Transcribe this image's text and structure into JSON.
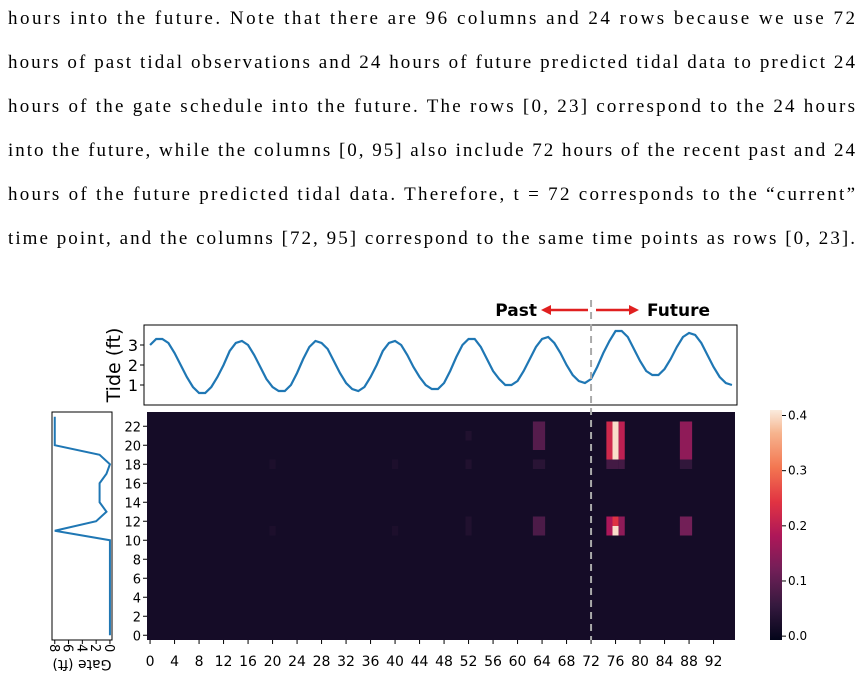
{
  "paragraph": [
    "hours into the future. Note that there are 96 columns and 24 rows because we use 72",
    "hours of past tidal observations and 24 hours of future predicted tidal data to predict 24",
    "hours of the gate schedule into the future. The rows [0, 23] correspond to the 24 hours",
    "into the future, while the columns [0, 95] also include 72 hours of the recent past and 24",
    "hours of the future predicted tidal data. Therefore, t = 72 corresponds to the “current”",
    "time point, and the columns [72, 95] correspond to the same time points as rows [0, 23]."
  ],
  "figure": {
    "annotation": {
      "past": "Past",
      "future": "Future",
      "arrow_color": "#e02020"
    },
    "tide": {
      "ylabel": "Tide (ft)",
      "ylim": [
        0,
        4
      ],
      "yticks": [
        1,
        2,
        3
      ],
      "xlim": [
        -0.5,
        95.5
      ],
      "color": "#1f77b4",
      "values": [
        3.0,
        3.3,
        3.3,
        3.1,
        2.6,
        2.0,
        1.4,
        0.9,
        0.6,
        0.6,
        0.9,
        1.4,
        2.0,
        2.7,
        3.1,
        3.2,
        3.0,
        2.5,
        1.9,
        1.3,
        0.9,
        0.7,
        0.7,
        1.0,
        1.6,
        2.3,
        2.9,
        3.2,
        3.1,
        2.8,
        2.2,
        1.6,
        1.1,
        0.8,
        0.7,
        0.9,
        1.4,
        2.0,
        2.7,
        3.1,
        3.2,
        3.0,
        2.5,
        1.9,
        1.4,
        1.0,
        0.8,
        0.8,
        1.1,
        1.7,
        2.4,
        3.0,
        3.3,
        3.3,
        2.9,
        2.3,
        1.7,
        1.3,
        1.0,
        1.0,
        1.2,
        1.7,
        2.3,
        2.9,
        3.3,
        3.4,
        3.1,
        2.6,
        2.0,
        1.5,
        1.2,
        1.1,
        1.3,
        1.9,
        2.6,
        3.2,
        3.7,
        3.7,
        3.4,
        2.8,
        2.2,
        1.7,
        1.5,
        1.5,
        1.8,
        2.3,
        2.9,
        3.4,
        3.6,
        3.5,
        3.1,
        2.5,
        1.9,
        1.4,
        1.1,
        1.0
      ]
    },
    "gate": {
      "xlabel": "Gate (ft)",
      "xlim": [
        8.4,
        -0.3
      ],
      "xticks": [
        8,
        6,
        4,
        2,
        0
      ],
      "color": "#1f77b4",
      "values": [
        0,
        0,
        0,
        0,
        0,
        0,
        0,
        0,
        0,
        0,
        0,
        8,
        2,
        0.5,
        1.5,
        1.5,
        1.5,
        0.5,
        0,
        1.5,
        8,
        8,
        8,
        8
      ]
    },
    "heatmap": {
      "xlim": [
        -0.5,
        95.5
      ],
      "ylim": [
        -0.5,
        23.5
      ],
      "xticks": [
        0,
        4,
        8,
        12,
        16,
        20,
        24,
        28,
        32,
        36,
        40,
        44,
        48,
        52,
        56,
        60,
        64,
        68,
        72,
        76,
        80,
        84,
        88,
        92
      ],
      "yticks": [
        0,
        2,
        4,
        6,
        8,
        10,
        12,
        14,
        16,
        18,
        20,
        22
      ],
      "background": 0.015,
      "divider": 72,
      "cells": [
        {
          "row": 20,
          "col": 63,
          "value": 0.09
        },
        {
          "row": 21,
          "col": 63,
          "value": 0.09
        },
        {
          "row": 22,
          "col": 63,
          "value": 0.09
        },
        {
          "row": 20,
          "col": 64,
          "value": 0.09
        },
        {
          "row": 21,
          "col": 64,
          "value": 0.09
        },
        {
          "row": 22,
          "col": 64,
          "value": 0.09
        },
        {
          "row": 11,
          "col": 63,
          "value": 0.08
        },
        {
          "row": 12,
          "col": 63,
          "value": 0.08
        },
        {
          "row": 11,
          "col": 64,
          "value": 0.08
        },
        {
          "row": 12,
          "col": 64,
          "value": 0.08
        },
        {
          "row": 18,
          "col": 63,
          "value": 0.04
        },
        {
          "row": 18,
          "col": 64,
          "value": 0.04
        },
        {
          "row": 19,
          "col": 75,
          "value": 0.22
        },
        {
          "row": 20,
          "col": 75,
          "value": 0.22
        },
        {
          "row": 21,
          "col": 75,
          "value": 0.22
        },
        {
          "row": 22,
          "col": 75,
          "value": 0.22
        },
        {
          "row": 19,
          "col": 76,
          "value": 0.4
        },
        {
          "row": 20,
          "col": 76,
          "value": 0.4
        },
        {
          "row": 21,
          "col": 76,
          "value": 0.4
        },
        {
          "row": 22,
          "col": 76,
          "value": 0.4
        },
        {
          "row": 19,
          "col": 77,
          "value": 0.2
        },
        {
          "row": 20,
          "col": 77,
          "value": 0.2
        },
        {
          "row": 21,
          "col": 77,
          "value": 0.2
        },
        {
          "row": 22,
          "col": 77,
          "value": 0.2
        },
        {
          "row": 11,
          "col": 75,
          "value": 0.18
        },
        {
          "row": 12,
          "col": 75,
          "value": 0.18
        },
        {
          "row": 11,
          "col": 76,
          "value": 0.4
        },
        {
          "row": 12,
          "col": 76,
          "value": 0.24
        },
        {
          "row": 11,
          "col": 77,
          "value": 0.15
        },
        {
          "row": 12,
          "col": 77,
          "value": 0.15
        },
        {
          "row": 18,
          "col": 75,
          "value": 0.07
        },
        {
          "row": 18,
          "col": 76,
          "value": 0.07
        },
        {
          "row": 18,
          "col": 77,
          "value": 0.07
        },
        {
          "row": 19,
          "col": 87,
          "value": 0.15
        },
        {
          "row": 20,
          "col": 87,
          "value": 0.15
        },
        {
          "row": 21,
          "col": 87,
          "value": 0.15
        },
        {
          "row": 22,
          "col": 87,
          "value": 0.15
        },
        {
          "row": 19,
          "col": 88,
          "value": 0.15
        },
        {
          "row": 20,
          "col": 88,
          "value": 0.15
        },
        {
          "row": 21,
          "col": 88,
          "value": 0.15
        },
        {
          "row": 22,
          "col": 88,
          "value": 0.15
        },
        {
          "row": 11,
          "col": 87,
          "value": 0.12
        },
        {
          "row": 12,
          "col": 87,
          "value": 0.12
        },
        {
          "row": 11,
          "col": 88,
          "value": 0.12
        },
        {
          "row": 12,
          "col": 88,
          "value": 0.12
        },
        {
          "row": 18,
          "col": 87,
          "value": 0.05
        },
        {
          "row": 18,
          "col": 88,
          "value": 0.05
        },
        {
          "row": 11,
          "col": 52,
          "value": 0.03
        },
        {
          "row": 12,
          "col": 52,
          "value": 0.03
        },
        {
          "row": 18,
          "col": 52,
          "value": 0.03
        },
        {
          "row": 21,
          "col": 52,
          "value": 0.03
        },
        {
          "row": 11,
          "col": 20,
          "value": 0.025
        },
        {
          "row": 18,
          "col": 20,
          "value": 0.025
        },
        {
          "row": 11,
          "col": 40,
          "value": 0.025
        },
        {
          "row": 18,
          "col": 40,
          "value": 0.025
        }
      ]
    },
    "colorbar": {
      "clim": [
        -0.007,
        0.41
      ],
      "ticks": [
        {
          "value": 0,
          "label": "0.0"
        },
        0.1,
        0.2,
        0.3,
        0.4
      ]
    }
  }
}
